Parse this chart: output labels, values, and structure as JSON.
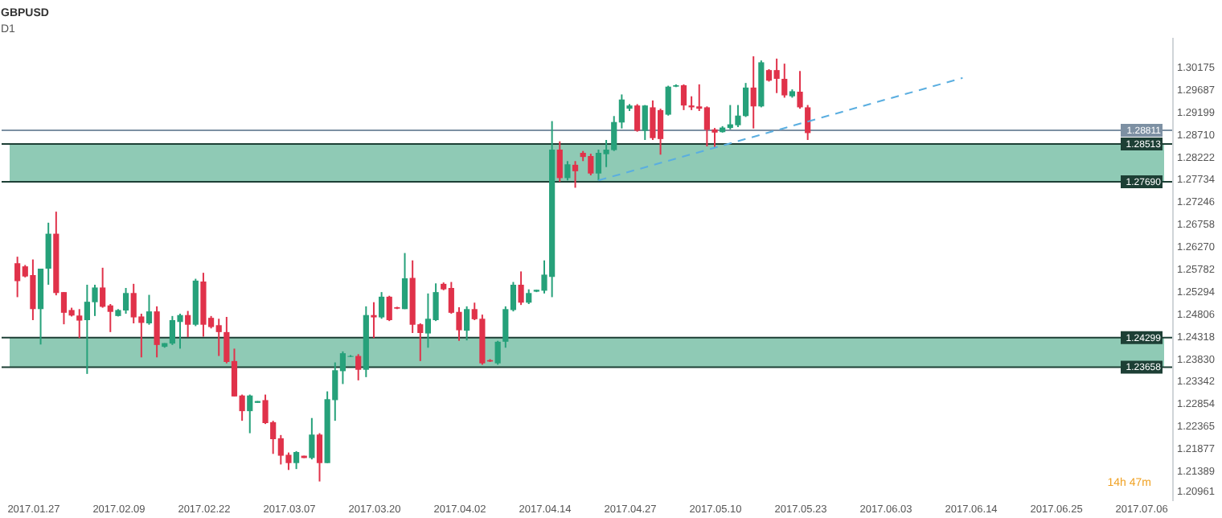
{
  "chart_data": {
    "type": "candlestick",
    "title": "GBPUSD",
    "subtitle": "D1",
    "categories": [
      null,
      null,
      "2017.01.27",
      null,
      null,
      null,
      null,
      null,
      null,
      null,
      null,
      null,
      null,
      "2017.02.09",
      null,
      null,
      null,
      null,
      null,
      null,
      null,
      null,
      null,
      null,
      "2017.02.22",
      null,
      null,
      null,
      null,
      null,
      null,
      null,
      null,
      null,
      null,
      "2017.03.07",
      null,
      null,
      null,
      null,
      null,
      null,
      null,
      null,
      null,
      null,
      "2017.03.20",
      null,
      null,
      null,
      null,
      null,
      null,
      null,
      null,
      null,
      null,
      "2017.04.02",
      null,
      null,
      null,
      null,
      null,
      null,
      null,
      null,
      null,
      null,
      "2017.04.14",
      null,
      null,
      null,
      null,
      null,
      null,
      null,
      null,
      null,
      null,
      "2017.04.27",
      null,
      null,
      null,
      null,
      null,
      null,
      null,
      null,
      null,
      null,
      "2017.05.10",
      null,
      null,
      null,
      null,
      null,
      null,
      null,
      null,
      null,
      null,
      "2017.05.23",
      null,
      null,
      null,
      null,
      null,
      null,
      null,
      null,
      null,
      null,
      "2017.06.03",
      null,
      null,
      null,
      null,
      null,
      null,
      null,
      null,
      null,
      null,
      "2017.06.14",
      null,
      null,
      null,
      null,
      null,
      null,
      null,
      null,
      null,
      null,
      "2017.06.25",
      null,
      null,
      null,
      null,
      null,
      null,
      null,
      null,
      null,
      null,
      "2017.07.06",
      null,
      null
    ],
    "ohlc": [
      [
        1.2592,
        1.2606,
        1.2518,
        1.2553
      ],
      [
        1.2585,
        1.2588,
        1.2561,
        1.2563
      ],
      [
        1.2566,
        1.26,
        1.2468,
        1.2492
      ],
      [
        1.2492,
        1.258,
        1.2415,
        1.258
      ],
      [
        1.258,
        1.268,
        1.2545,
        1.2656
      ],
      [
        1.2656,
        1.2704,
        1.2522,
        1.2527
      ],
      [
        1.2529,
        1.2529,
        1.2459,
        1.2484
      ],
      [
        1.249,
        1.2495,
        1.2476,
        1.2478
      ],
      [
        1.2478,
        1.2492,
        1.2429,
        1.2467
      ],
      [
        1.2468,
        1.2545,
        1.2351,
        1.2508
      ],
      [
        1.2507,
        1.2545,
        1.2477,
        1.2539
      ],
      [
        1.2539,
        1.2582,
        1.2495,
        1.2497
      ],
      [
        1.25,
        1.2503,
        1.2442,
        1.2486
      ],
      [
        1.2477,
        1.2492,
        1.2476,
        1.249
      ],
      [
        1.2489,
        1.2538,
        1.2482,
        1.2527
      ],
      [
        1.2527,
        1.2547,
        1.2461,
        1.2474
      ],
      [
        1.2476,
        1.2482,
        1.2387,
        1.2462
      ],
      [
        1.2461,
        1.2523,
        1.2458,
        1.2487
      ],
      [
        1.2487,
        1.2498,
        1.2387,
        1.2414
      ],
      [
        1.241,
        1.2418,
        1.2408,
        1.2418
      ],
      [
        1.2417,
        1.2477,
        1.2414,
        1.2468
      ],
      [
        1.2464,
        1.2482,
        1.2406,
        1.2479
      ],
      [
        1.2479,
        1.2488,
        1.2431,
        1.2458
      ],
      [
        1.2458,
        1.2558,
        1.2455,
        1.2554
      ],
      [
        1.2552,
        1.2571,
        1.2432,
        1.2458
      ],
      [
        1.2473,
        1.2477,
        1.245,
        1.2453
      ],
      [
        1.2457,
        1.2471,
        1.239,
        1.2442
      ],
      [
        1.2442,
        1.2475,
        1.2374,
        1.2377
      ],
      [
        1.2379,
        1.2406,
        1.2302,
        1.2302
      ],
      [
        1.2304,
        1.2306,
        1.2249,
        1.227
      ],
      [
        1.227,
        1.2306,
        1.2222,
        1.2304
      ],
      [
        1.2288,
        1.2292,
        1.2288,
        1.2292
      ],
      [
        1.2294,
        1.2306,
        1.2242,
        1.2244
      ],
      [
        1.2246,
        1.2249,
        1.2177,
        1.2209
      ],
      [
        1.2211,
        1.2218,
        1.2154,
        1.2173
      ],
      [
        1.2175,
        1.218,
        1.2142,
        1.2157
      ],
      [
        1.2157,
        1.2183,
        1.2144,
        1.2181
      ],
      [
        1.2173,
        1.2173,
        1.2168,
        1.2168
      ],
      [
        1.2168,
        1.2255,
        1.2165,
        1.2219
      ],
      [
        1.2219,
        1.2222,
        1.2117,
        1.2157
      ],
      [
        1.2157,
        1.2313,
        1.2157,
        1.2296
      ],
      [
        1.2294,
        1.2376,
        1.2249,
        1.2359
      ],
      [
        1.2357,
        1.24,
        1.2329,
        1.2396
      ],
      [
        1.2388,
        1.2392,
        1.2388,
        1.239
      ],
      [
        1.239,
        1.2394,
        1.2337,
        1.236
      ],
      [
        1.236,
        1.2498,
        1.2344,
        1.2479
      ],
      [
        1.2479,
        1.2507,
        1.2429,
        1.2474
      ],
      [
        1.2474,
        1.2529,
        1.2471,
        1.2519
      ],
      [
        1.2519,
        1.2521,
        1.2466,
        1.2468
      ],
      [
        1.2496,
        1.2497,
        1.2492,
        1.2493
      ],
      [
        1.2492,
        1.2614,
        1.2492,
        1.2559
      ],
      [
        1.256,
        1.2598,
        1.244,
        1.2458
      ],
      [
        1.2459,
        1.2461,
        1.2379,
        1.244
      ],
      [
        1.2439,
        1.2526,
        1.2408,
        1.2471
      ],
      [
        1.2468,
        1.2548,
        1.2466,
        1.2529
      ],
      [
        1.2547,
        1.255,
        1.2533,
        1.2535
      ],
      [
        1.2538,
        1.2551,
        1.2482,
        1.2484
      ],
      [
        1.2486,
        1.2496,
        1.2423,
        1.2446
      ],
      [
        1.2445,
        1.2498,
        1.2424,
        1.2492
      ],
      [
        1.2492,
        1.2506,
        1.2468,
        1.247
      ],
      [
        1.2471,
        1.248,
        1.2371,
        1.2374
      ],
      [
        1.2381,
        1.2383,
        1.2377,
        1.2378
      ],
      [
        1.2374,
        1.2423,
        1.2371,
        1.2421
      ],
      [
        1.2421,
        1.2498,
        1.2408,
        1.2492
      ],
      [
        1.249,
        1.2551,
        1.2487,
        1.2545
      ],
      [
        1.2545,
        1.2574,
        1.2501,
        1.2506
      ],
      [
        1.2506,
        1.2535,
        1.2503,
        1.2527
      ],
      [
        1.253,
        1.2534,
        1.2529,
        1.2534
      ],
      [
        1.2532,
        1.2598,
        1.2526,
        1.2567
      ],
      [
        1.2562,
        1.2901,
        1.2518,
        1.2839
      ],
      [
        1.2839,
        1.2857,
        1.2769,
        1.2777
      ],
      [
        1.2777,
        1.2814,
        1.2772,
        1.2807
      ],
      [
        1.2806,
        1.2814,
        1.2756,
        1.2792
      ],
      [
        1.2832,
        1.2836,
        1.2814,
        1.2823
      ],
      [
        1.2825,
        1.283,
        1.2783,
        1.2787
      ],
      [
        1.2787,
        1.2839,
        1.2772,
        1.2832
      ],
      [
        1.2829,
        1.286,
        1.2801,
        1.2839
      ],
      [
        1.2838,
        1.2912,
        1.2836,
        1.2899
      ],
      [
        1.2898,
        1.2959,
        1.2885,
        1.2948
      ],
      [
        1.2928,
        1.2938,
        1.2923,
        1.2935
      ],
      [
        1.2935,
        1.2938,
        1.2878,
        1.288
      ],
      [
        1.288,
        1.2936,
        1.286,
        1.2935
      ],
      [
        1.2931,
        1.2946,
        1.286,
        1.2864
      ],
      [
        1.2925,
        1.2928,
        1.2828,
        1.2862
      ],
      [
        1.2915,
        1.2978,
        1.2913,
        1.2976
      ],
      [
        1.2976,
        1.2981,
        1.2975,
        1.2979
      ],
      [
        1.2979,
        1.2981,
        1.2925,
        1.2935
      ],
      [
        1.2935,
        1.2955,
        1.2925,
        1.2931
      ],
      [
        1.2933,
        1.2981,
        1.2923,
        1.2928
      ],
      [
        1.2931,
        1.2933,
        1.2846,
        1.2882
      ],
      [
        1.2883,
        1.2886,
        1.2843,
        1.2876
      ],
      [
        1.2877,
        1.289,
        1.2876,
        1.2887
      ],
      [
        1.2886,
        1.2936,
        1.2883,
        1.2894
      ],
      [
        1.2892,
        1.2936,
        1.2888,
        1.2913
      ],
      [
        1.2912,
        1.2984,
        1.291,
        1.2974
      ],
      [
        1.2974,
        1.3042,
        1.2885,
        1.2933
      ],
      [
        1.2933,
        1.3033,
        1.2931,
        1.3029
      ],
      [
        1.3012,
        1.3014,
        1.2987,
        1.2989
      ],
      [
        1.3012,
        1.3037,
        1.2962,
        1.2993
      ],
      [
        1.2993,
        1.3026,
        1.2952,
        1.2957
      ],
      [
        1.2955,
        1.297,
        1.2952,
        1.2966
      ],
      [
        1.2965,
        1.301,
        1.2928,
        1.2931
      ],
      [
        1.2931,
        1.2936,
        1.286,
        1.2875
      ],
      null,
      null,
      null,
      null,
      null,
      null,
      null,
      null,
      null,
      null,
      null,
      null,
      null,
      null,
      null,
      null,
      null,
      null,
      null,
      null,
      null,
      null,
      null,
      null,
      null,
      null,
      null,
      null,
      null,
      null,
      null,
      null,
      null,
      null,
      null,
      null,
      null,
      null,
      null,
      null,
      null,
      null,
      null,
      null,
      null
    ],
    "colors": [
      "#e0324a",
      "#e0324a",
      "#e0324a",
      "#26a17a",
      "#26a17a",
      "#e0324a",
      "#e0324a",
      "#e0324a",
      "#e0324a",
      "#26a17a",
      "#26a17a",
      "#e0324a",
      "#e0324a",
      "#26a17a",
      "#26a17a",
      "#e0324a",
      "#e0324a",
      "#26a17a",
      "#e0324a",
      "#26a17a",
      "#26a17a",
      "#26a17a",
      "#e0324a",
      "#26a17a",
      "#e0324a",
      "#e0324a",
      "#e0324a",
      "#e0324a",
      "#e0324a",
      "#e0324a",
      "#26a17a",
      "#26a17a",
      "#e0324a",
      "#e0324a",
      "#e0324a",
      "#e0324a",
      "#26a17a",
      "#e0324a",
      "#26a17a",
      "#e0324a",
      "#26a17a",
      "#26a17a",
      "#26a17a",
      "#26a17a",
      "#e0324a",
      "#26a17a",
      "#e0324a",
      "#26a17a",
      "#e0324a",
      "#e0324a",
      "#26a17a",
      "#e0324a",
      "#e0324a",
      "#26a17a",
      "#26a17a",
      "#e0324a",
      "#e0324a",
      "#e0324a",
      "#26a17a",
      "#e0324a",
      "#e0324a",
      "#e0324a",
      "#26a17a",
      "#26a17a",
      "#26a17a",
      "#e0324a",
      "#26a17a",
      "#26a17a",
      "#26a17a",
      "#26a17a",
      "#e0324a",
      "#26a17a",
      "#e0324a",
      "#e0324a",
      "#e0324a",
      "#26a17a",
      "#26a17a",
      "#26a17a",
      "#26a17a",
      "#26a17a",
      "#e0324a",
      "#26a17a",
      "#e0324a",
      "#e0324a",
      "#26a17a",
      "#26a17a",
      "#e0324a",
      "#e0324a",
      "#e0324a",
      "#e0324a",
      "#e0324a",
      "#26a17a",
      "#26a17a",
      "#26a17a",
      "#26a17a",
      "#e0324a",
      "#26a17a",
      "#e0324a",
      "#e0324a",
      "#e0324a",
      "#26a17a",
      "#e0324a",
      "#e0324a",
      null,
      null,
      null,
      null,
      null,
      null,
      null,
      null,
      null,
      null,
      null,
      null,
      null,
      null,
      null,
      null,
      null,
      null,
      null,
      null,
      null,
      null,
      null,
      null,
      null,
      null,
      null,
      null,
      null,
      null,
      null,
      null,
      null,
      null,
      null,
      null,
      null,
      null,
      null,
      null,
      null,
      null,
      null,
      null,
      null
    ],
    "series": [
      {
        "type": "line",
        "color": "#5aaee0",
        "line_style": "dashed",
        "values": [
          null,
          null,
          null,
          null,
          null,
          null,
          null,
          null,
          null,
          null,
          null,
          null,
          null,
          null,
          null,
          null,
          null,
          null,
          null,
          null,
          null,
          null,
          null,
          null,
          null,
          null,
          null,
          null,
          null,
          null,
          null,
          null,
          null,
          null,
          null,
          null,
          null,
          null,
          null,
          null,
          null,
          null,
          null,
          null,
          null,
          null,
          null,
          null,
          null,
          null,
          null,
          null,
          null,
          null,
          null,
          null,
          null,
          null,
          null,
          null,
          null,
          null,
          null,
          null,
          null,
          null,
          null,
          null,
          null,
          null,
          null,
          null,
          null,
          null,
          null,
          1.2772,
          null,
          null,
          null,
          null,
          null,
          null,
          null,
          null,
          null,
          null,
          null,
          null,
          null,
          null,
          null,
          null,
          null,
          null,
          null,
          null,
          null,
          null,
          null,
          null,
          null,
          null,
          null,
          null,
          null,
          null,
          null,
          null,
          null,
          null,
          null,
          null,
          null,
          null,
          null,
          null,
          null,
          null,
          null,
          null,
          null,
          null,
          1.2995,
          null,
          null,
          null,
          null,
          null,
          null,
          null,
          null,
          null,
          null,
          null,
          null,
          null,
          null,
          null,
          null,
          null,
          null,
          null,
          null,
          null,
          null,
          null,
          null,
          null
        ]
      }
    ],
    "ylim": [
      1.2076,
      1.3084
    ],
    "yticks": [
      1.30175,
      1.29687,
      1.29199,
      {
        "value": 1.2871,
        "label": "1.28710"
      },
      1.28222,
      1.27734,
      1.27246,
      1.26758,
      {
        "value": 1.2627,
        "label": "1.26270"
      },
      1.25782,
      1.25294,
      1.24806,
      1.24318,
      {
        "value": 1.2383,
        "label": "1.23830"
      },
      1.23342,
      1.22854,
      1.22365,
      1.21877,
      1.21389,
      1.20961
    ],
    "bands": [
      {
        "axis": "y",
        "from": 1.2769,
        "to": 1.28513,
        "color": "#8fcab5"
      },
      {
        "axis": "y",
        "from": 1.23658,
        "to": 1.24299,
        "color": "#8fcab5"
      }
    ],
    "ref_lines": [
      {
        "axis": "y",
        "value": 1.28811,
        "label": "1.28811",
        "color": "#7d90a3"
      },
      {
        "axis": "y",
        "value": 1.28513,
        "label": "1.28513",
        "color": "#1d3f35"
      },
      {
        "axis": "y",
        "value": 1.2769,
        "label": "1.27690",
        "color": "#1d3f35"
      },
      {
        "axis": "y",
        "value": 1.24299,
        "label": "1.24299",
        "color": "#1d3f35"
      },
      {
        "axis": "y",
        "value": 1.23658,
        "label": "1.23658",
        "color": "#1d3f35"
      }
    ],
    "annotations": [
      "14h 47m"
    ],
    "grid": false
  }
}
